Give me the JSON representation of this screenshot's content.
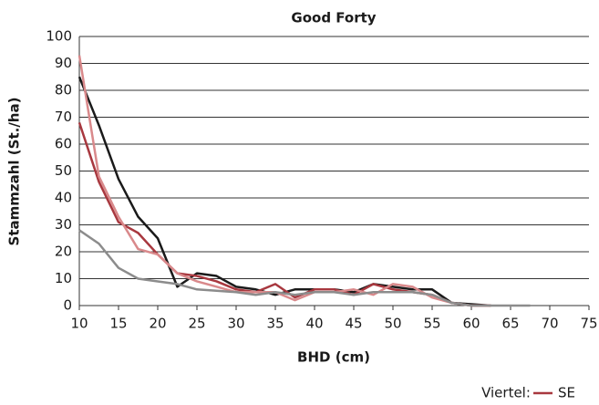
{
  "chart_data": {
    "type": "line",
    "title": "Good Forty",
    "x_label": "BHD (cm)",
    "y_label": "Stammzahl (St./ha)",
    "x": [
      10,
      12.5,
      15,
      17.5,
      20,
      22.5,
      25,
      27.5,
      30,
      32.5,
      35,
      37.5,
      40,
      42.5,
      45,
      47.5,
      50,
      52.5,
      55,
      57.5,
      60,
      62.5,
      65,
      67.5
    ],
    "series": [
      {
        "color": "#1a1a1a",
        "values": [
          85,
          67,
          47,
          33,
          25,
          7,
          12,
          11,
          7,
          6,
          4,
          6,
          6,
          6,
          5,
          8,
          7,
          6,
          6,
          1,
          0.5,
          0,
          null,
          null
        ]
      },
      {
        "name": "SE",
        "color": "#a8383f",
        "values": [
          68,
          46,
          31,
          27,
          19,
          12,
          11,
          9,
          6,
          5,
          8,
          3,
          6,
          6,
          4,
          8,
          6,
          5,
          4,
          1,
          0,
          0,
          null,
          null
        ]
      },
      {
        "color": "#d9898b",
        "values": [
          93,
          48,
          33,
          21,
          19,
          12,
          9,
          7,
          5,
          5,
          5,
          2,
          5,
          5,
          6,
          4,
          8,
          7,
          3,
          1,
          0,
          0,
          null,
          null
        ]
      },
      {
        "color": "#8c8c8c",
        "values": [
          28,
          23,
          14,
          10,
          9,
          8,
          6,
          5.5,
          5,
          4,
          5,
          4,
          5,
          5,
          4,
          5,
          5,
          5,
          4,
          1,
          0,
          0,
          0,
          0
        ]
      }
    ],
    "legend_title": "Viertel:",
    "xlim": [
      10,
      75
    ],
    "xticks": [
      10,
      15,
      20,
      25,
      30,
      35,
      40,
      45,
      50,
      55,
      60,
      65,
      70,
      75
    ],
    "ylim": [
      0,
      100
    ],
    "yticks": [
      0,
      10,
      20,
      30,
      40,
      50,
      60,
      70,
      80,
      90,
      100
    ],
    "grid": true
  }
}
